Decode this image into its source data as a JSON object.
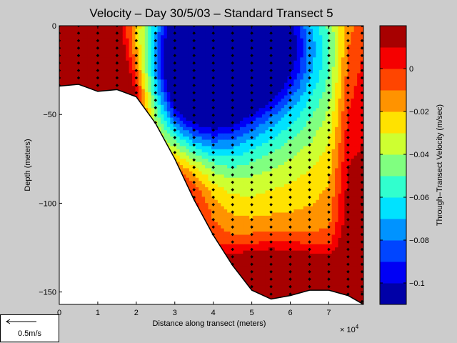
{
  "chart_data": {
    "type": "heatmap",
    "subtype": "filled-contour section",
    "title": "Velocity – Day 30/5/03 – Standard Transect 5",
    "xlabel": "Distance along transect (meters)",
    "ylabel": "Depth (meters)",
    "x_exponent": "× 10",
    "x_exponent_power": "4",
    "xlim": [
      0,
      79000
    ],
    "ylim": [
      -157,
      0
    ],
    "x_ticks": [
      0,
      10000,
      20000,
      30000,
      40000,
      50000,
      60000,
      70000
    ],
    "x_tick_labels": [
      "0",
      "1",
      "2",
      "3",
      "4",
      "5",
      "6",
      "7"
    ],
    "y_ticks": [
      0,
      -50,
      -100,
      -150
    ],
    "y_tick_labels": [
      "0",
      "−50",
      "−100",
      "−150"
    ],
    "colorbar": {
      "label": "Through–Transect Velocity (m/sec)",
      "range": [
        -0.11,
        0.02
      ],
      "ticks": [
        0,
        -0.02,
        -0.04,
        -0.06,
        -0.08,
        -0.1
      ],
      "tick_labels": [
        "0",
        "−0.02",
        "−0.04",
        "−0.06",
        "−0.08",
        "−0.1"
      ],
      "colormap": "jet"
    },
    "bottom_profile": {
      "x": [
        0,
        5000,
        10000,
        15000,
        20000,
        25000,
        30000,
        35000,
        40000,
        45000,
        50000,
        55000,
        60000,
        65000,
        70000,
        75000,
        79000
      ],
      "depth": [
        -34,
        -33,
        -37,
        -36,
        -40,
        -55,
        -75,
        -98,
        -118,
        -135,
        -149,
        -154,
        -152,
        -149,
        -149,
        -152,
        -157
      ]
    },
    "station_x": [
      0,
      5000,
      10000,
      15000,
      20000,
      25000,
      30000,
      35000,
      40000,
      45000,
      50000,
      55000,
      60000,
      65000,
      70000,
      75000,
      79000
    ],
    "velocity_field": {
      "x": [
        0,
        5000,
        10000,
        15000,
        20000,
        25000,
        30000,
        35000,
        40000,
        45000,
        50000,
        55000,
        60000,
        65000,
        70000,
        75000,
        79000
      ],
      "depth": [
        0,
        -5,
        -10,
        -15,
        -20,
        -25,
        -30,
        -35,
        -40,
        -45,
        -50,
        -55,
        -60,
        -65,
        -70,
        -75,
        -80,
        -85,
        -90,
        -95,
        -100,
        -105,
        -110,
        -115,
        -120,
        -125,
        -130,
        -135,
        -140,
        -145,
        -150,
        -155
      ],
      "note": "velocities in m/sec"
    }
  },
  "scale_arrow": {
    "label": "0.5m/s",
    "value": 0.5,
    "unit": "m/s"
  }
}
